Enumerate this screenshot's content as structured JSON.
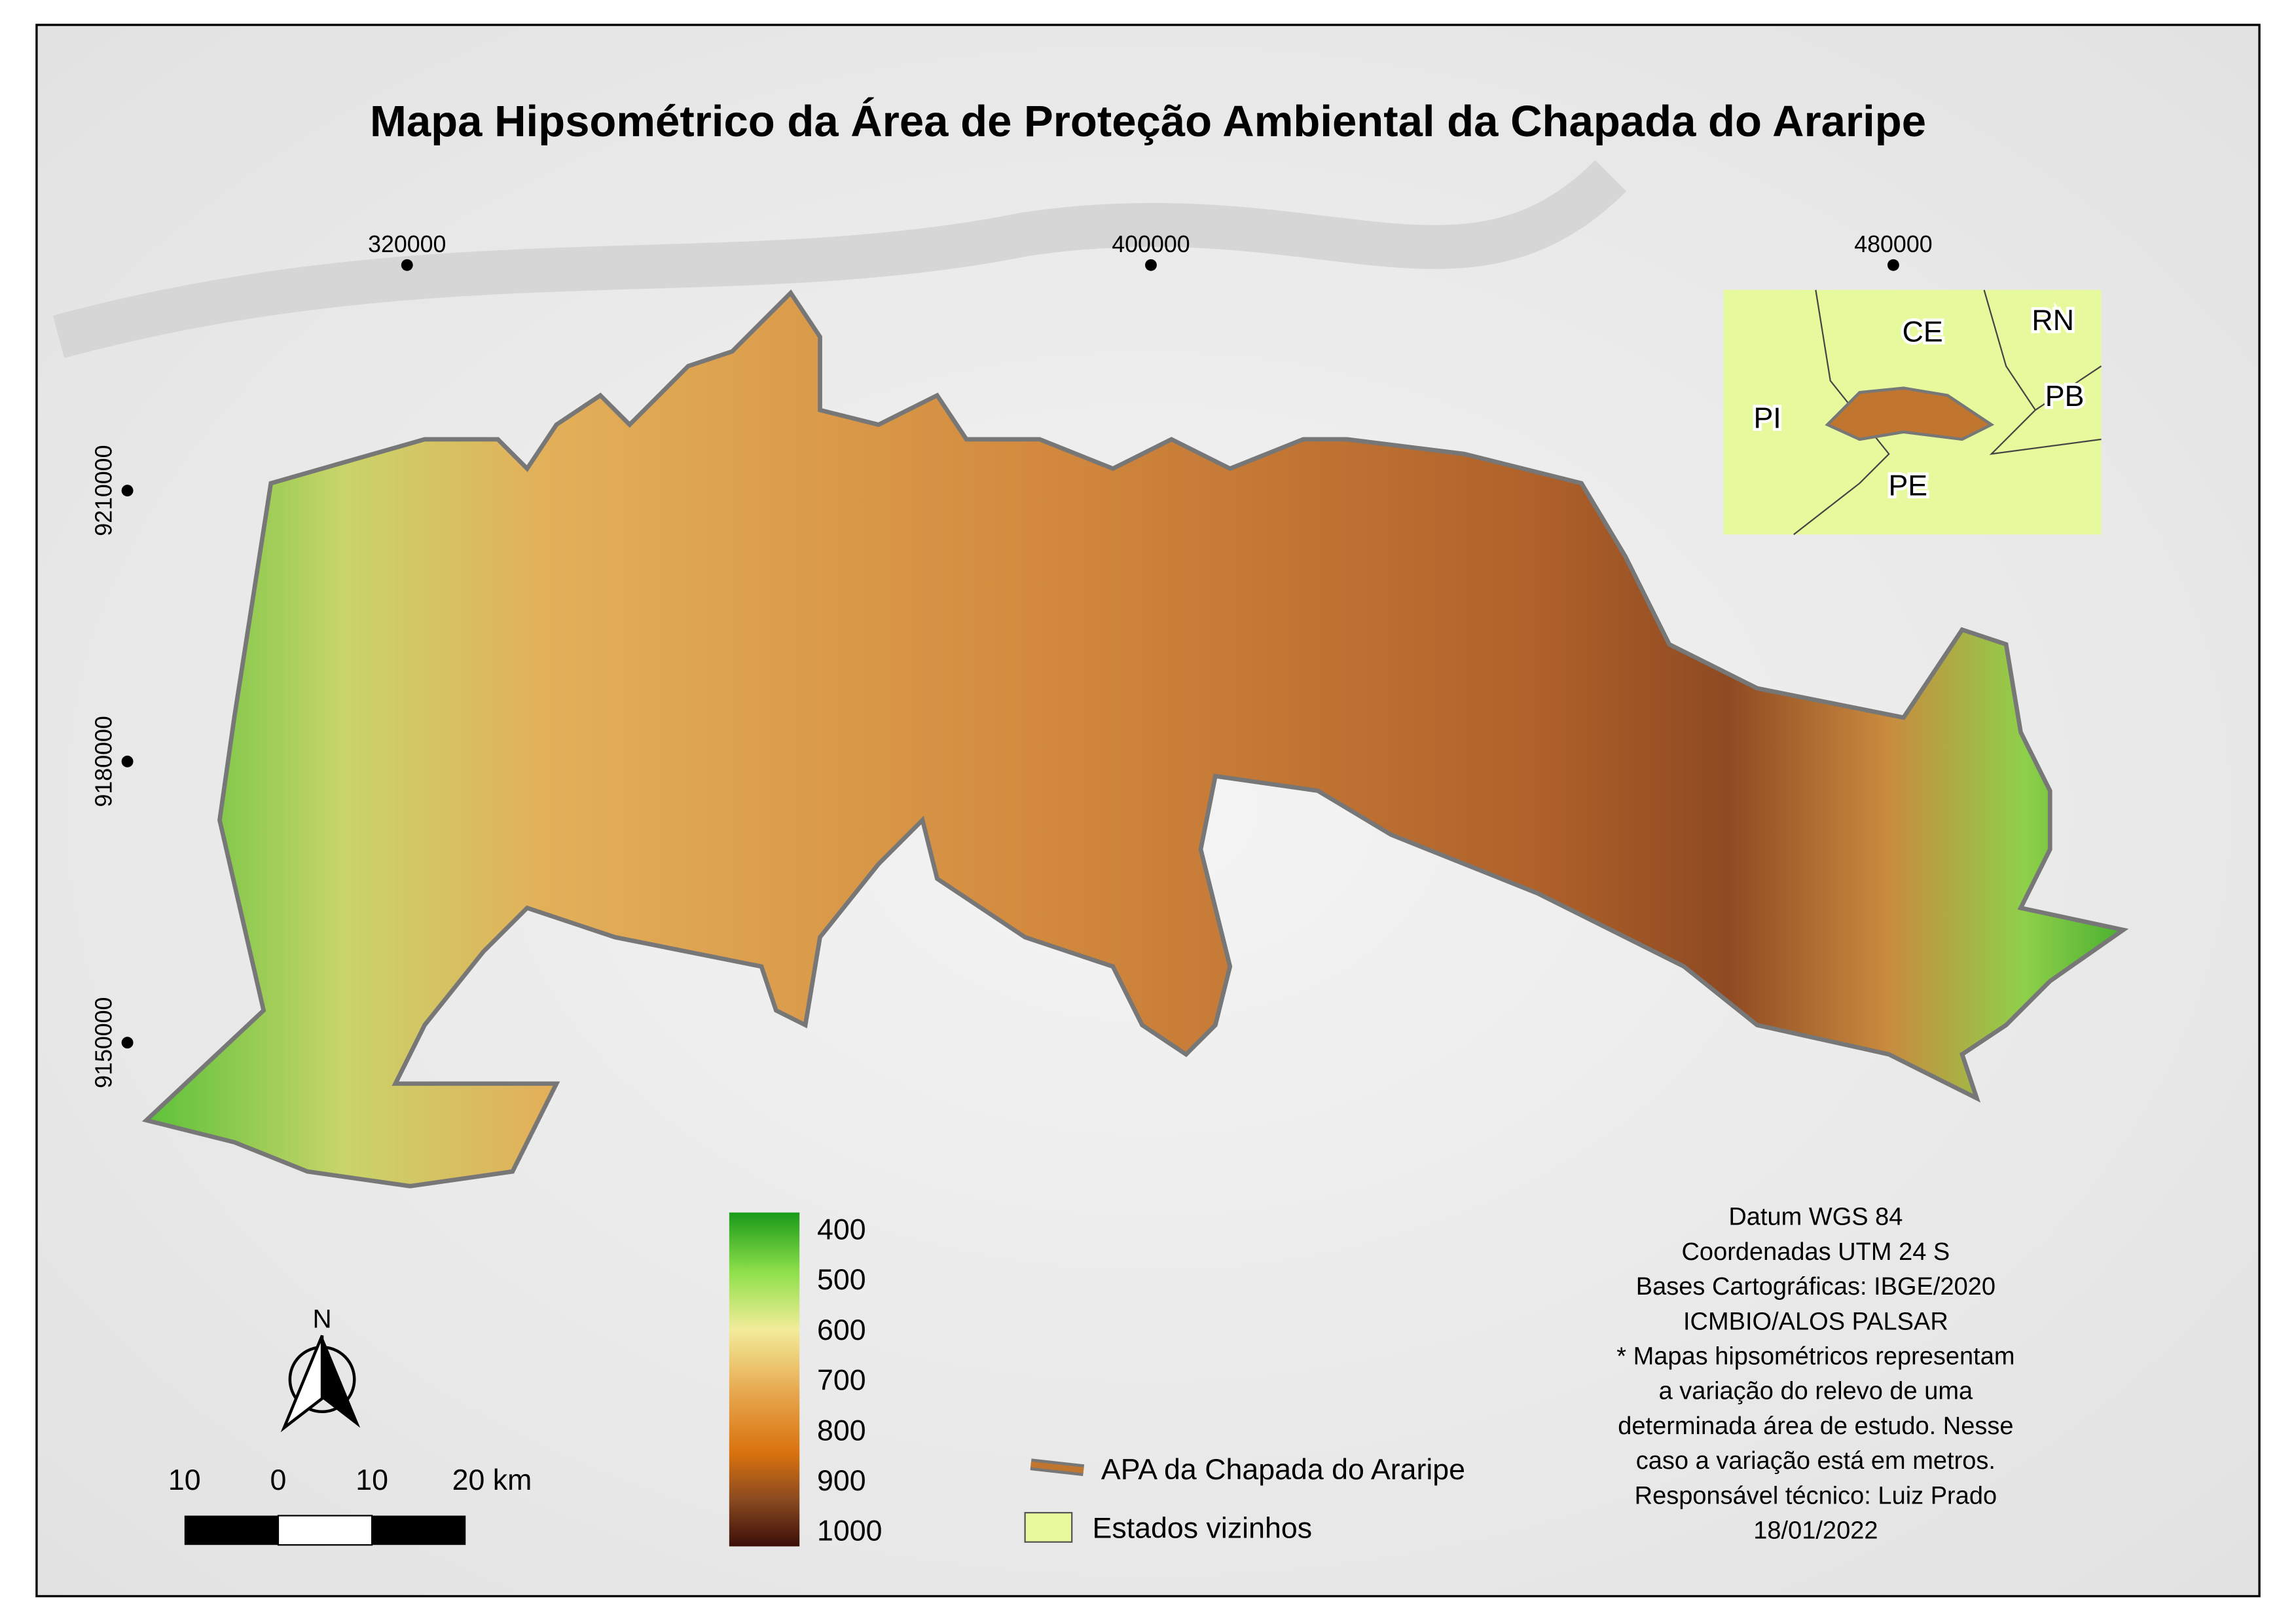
{
  "title": "Mapa Hipsométrico da Área de Proteção Ambiental da Chapada do Araripe",
  "grid": {
    "x_labels": [
      "320000",
      "400000",
      "480000"
    ],
    "y_labels": [
      "9210000",
      "9180000",
      "9150000"
    ]
  },
  "inset": {
    "labels": [
      "CE",
      "RN",
      "PI",
      "PB",
      "PE"
    ]
  },
  "elevation_legend": {
    "ticks": [
      400,
      500,
      600,
      700,
      800,
      900,
      1000
    ]
  },
  "legend": {
    "items": [
      "APA da Chapada do Araripe",
      "Estados vizinhos"
    ]
  },
  "scale_bar": {
    "labels": [
      "10",
      "0",
      "10",
      "20 km"
    ]
  },
  "north": "N",
  "notes": [
    "Datum WGS 84",
    "Coordenadas UTM 24 S",
    "Bases Cartográficas: IBGE/2020",
    "ICMBIO/ALOS PALSAR",
    "* Mapas hipsométricos representam",
    "a variação do relevo de uma",
    "determinada área de estudo. Nesse",
    "caso a variação está em metros.",
    "Responsável técnico: Luiz Prado",
    "18/01/2022"
  ]
}
